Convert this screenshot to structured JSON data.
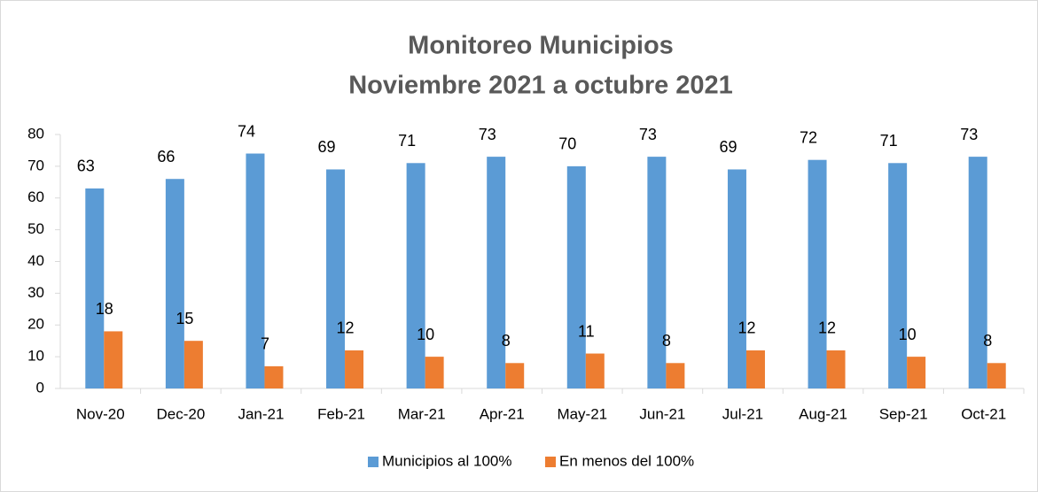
{
  "chart_data": {
    "type": "bar",
    "title": "Monitoreo Municipios",
    "subtitle": "Noviembre 2021 a octubre 2021",
    "categories": [
      "Nov-20",
      "Dec-20",
      "Jan-21",
      "Feb-21",
      "Mar-21",
      "Apr-21",
      "May-21",
      "Jun-21",
      "Jul-21",
      "Aug-21",
      "Sep-21",
      "Oct-21"
    ],
    "series": [
      {
        "name": "Municipios al 100%",
        "color": "#5b9bd5",
        "values": [
          63,
          66,
          74,
          69,
          71,
          73,
          70,
          73,
          69,
          72,
          71,
          73
        ]
      },
      {
        "name": "En menos del 100%",
        "color": "#ed7d31",
        "values": [
          18,
          15,
          7,
          12,
          10,
          8,
          11,
          8,
          12,
          12,
          10,
          8
        ]
      }
    ],
    "ylim": [
      0,
      80
    ],
    "yticks": [
      0,
      10,
      20,
      30,
      40,
      50,
      60,
      70,
      80
    ],
    "grid": false,
    "legend": "bottom"
  }
}
